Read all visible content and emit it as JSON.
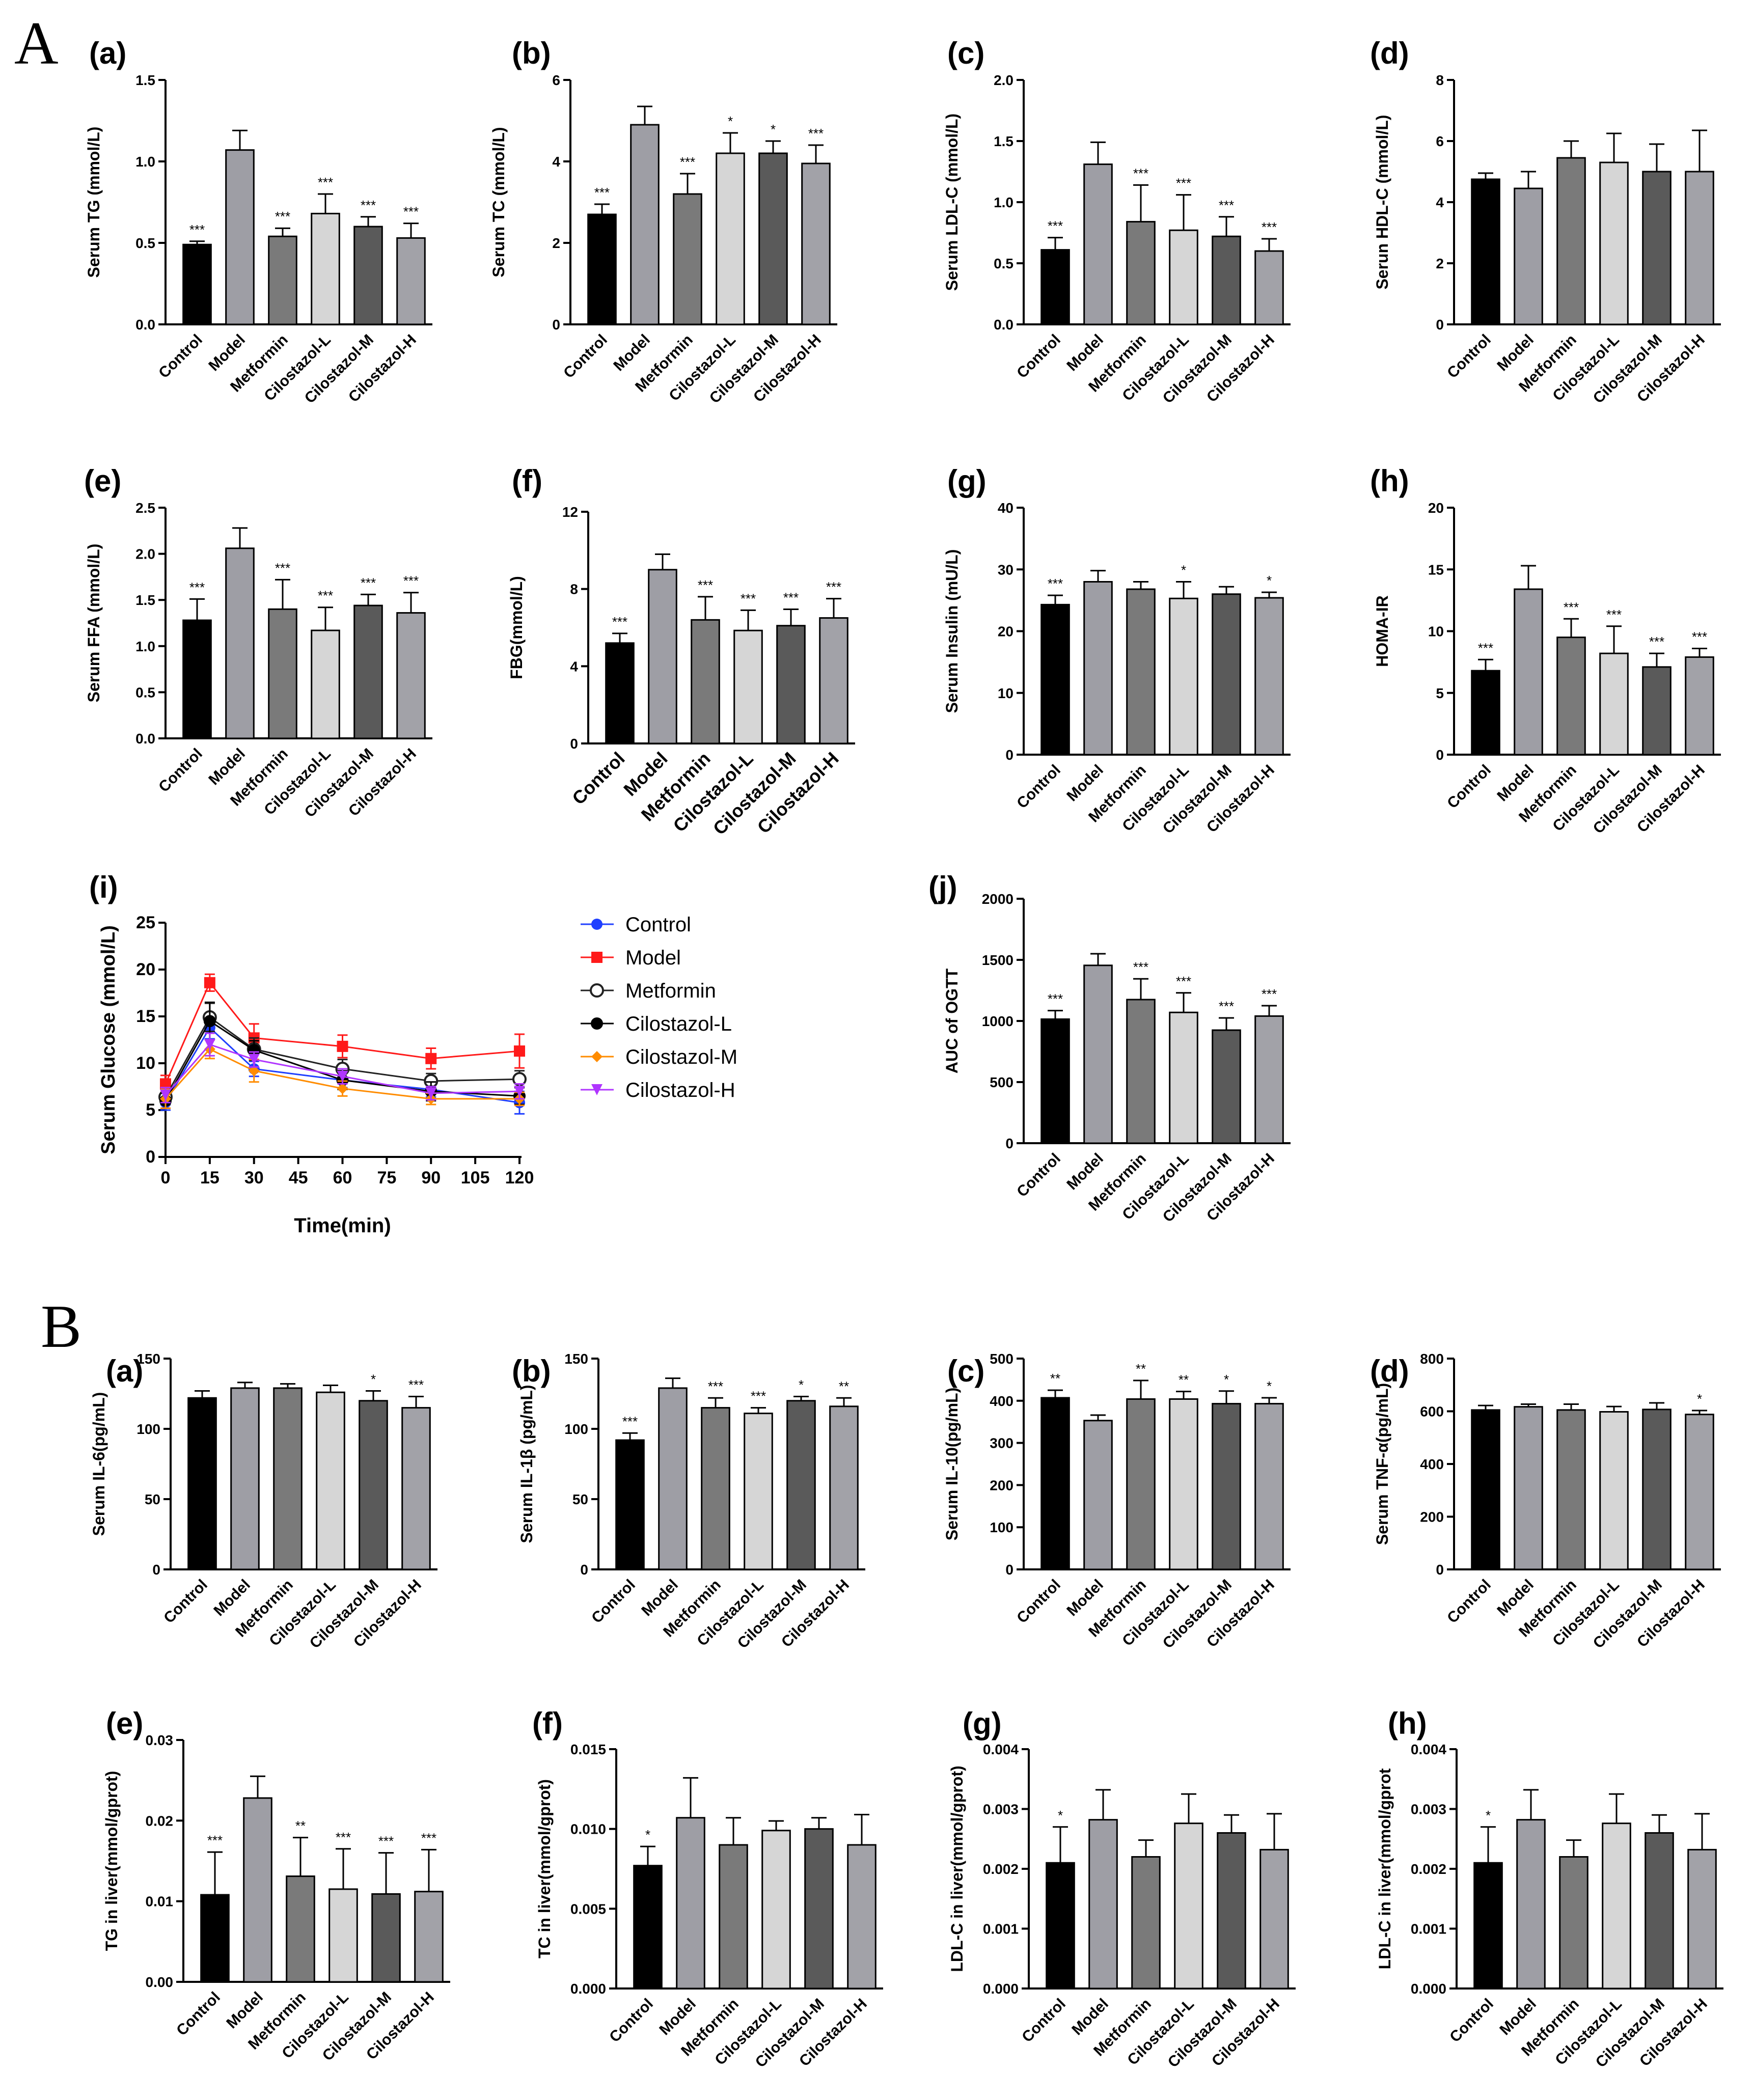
{
  "section_labels": [
    "A",
    "B"
  ],
  "colors": {
    "bars": [
      "#000000",
      "#9e9ea5",
      "#7a7a7a",
      "#d6d6d6",
      "#5a5a5a",
      "#a2a2a8"
    ],
    "lines": {
      "Control": "#1f3fff",
      "Model": "#ff1a1a",
      "Metformin": "#222222",
      "Cilostazol-L": "#000000",
      "Cilostazol-M": "#ff8c00",
      "Cilostazol-H": "#b035ff"
    }
  },
  "chart_data": [
    {
      "id": "A-a",
      "label": "(a)",
      "type": "bar",
      "ylabel": "Serum TG (mmol/L)",
      "ylim": [
        0,
        1.5
      ],
      "ticks": [
        "0.0",
        "0.5",
        "1.0",
        "1.5"
      ],
      "categories": [
        "Control",
        "Model",
        "Metformin",
        "Cilostazol-L",
        "Cilostazol-M",
        "Cilostazol-H"
      ],
      "values": [
        0.49,
        1.07,
        0.54,
        0.68,
        0.6,
        0.53
      ],
      "errors": [
        0.02,
        0.12,
        0.05,
        0.12,
        0.06,
        0.09
      ],
      "stars": [
        "***",
        "",
        "***",
        "***",
        "***",
        "***"
      ]
    },
    {
      "id": "A-b",
      "label": "(b)",
      "type": "bar",
      "ylabel": "Serum TC (mmol/L)",
      "ylim": [
        0,
        6
      ],
      "ticks": [
        "0",
        "2",
        "4",
        "6"
      ],
      "categories": [
        "Control",
        "Model",
        "Metformin",
        "Cilostazol-L",
        "Cilostazol-M",
        "Cilostazol-H"
      ],
      "values": [
        2.7,
        4.9,
        3.2,
        4.2,
        4.2,
        3.95
      ],
      "errors": [
        0.25,
        0.45,
        0.5,
        0.5,
        0.3,
        0.45
      ],
      "stars": [
        "***",
        "",
        "***",
        "*",
        "*",
        "***"
      ]
    },
    {
      "id": "A-c",
      "label": "(c)",
      "type": "bar",
      "ylabel": "Serum LDL-C (mmol/L)",
      "ylim": [
        0,
        2
      ],
      "ticks": [
        "0.0",
        "0.5",
        "1.0",
        "1.5",
        "2.0"
      ],
      "categories": [
        "Control",
        "Model",
        "Metformin",
        "Cilostazol-L",
        "Cilostazol-M",
        "Cilostazol-H"
      ],
      "values": [
        0.61,
        1.31,
        0.84,
        0.77,
        0.72,
        0.6
      ],
      "errors": [
        0.1,
        0.18,
        0.3,
        0.29,
        0.16,
        0.1
      ],
      "stars": [
        "***",
        "",
        "***",
        "***",
        "***",
        "***"
      ]
    },
    {
      "id": "A-d",
      "label": "(d)",
      "type": "bar",
      "ylabel": "Serun HDL-C (mmol/L)",
      "ylim": [
        0,
        8
      ],
      "ticks": [
        "0",
        "2",
        "4",
        "6",
        "8"
      ],
      "categories": [
        "Control",
        "Model",
        "Metformin",
        "Cilostazol-L",
        "Cilostazol-M",
        "Cilostazol-H"
      ],
      "values": [
        4.75,
        4.45,
        5.45,
        5.3,
        5.0,
        5.0
      ],
      "errors": [
        0.2,
        0.55,
        0.55,
        0.95,
        0.9,
        1.35
      ],
      "stars": [
        "",
        "",
        "",
        "",
        "",
        ""
      ]
    },
    {
      "id": "A-e",
      "label": "(e)",
      "type": "bar",
      "ylabel": "Serum FFA (mmol/L)",
      "ylim": [
        0,
        2.5
      ],
      "ticks": [
        "0.0",
        "0.5",
        "1.0",
        "1.5",
        "2.0",
        "2.5"
      ],
      "categories": [
        "Control",
        "Model",
        "Metformin",
        "Cilostazol-L",
        "Cilostazol-M",
        "Cilostazol-H"
      ],
      "values": [
        1.28,
        2.06,
        1.4,
        1.17,
        1.44,
        1.36
      ],
      "errors": [
        0.23,
        0.22,
        0.32,
        0.25,
        0.12,
        0.22
      ],
      "stars": [
        "***",
        "",
        "***",
        "***",
        "***",
        "***"
      ]
    },
    {
      "id": "A-f",
      "label": "(f)",
      "type": "bar",
      "ylabel": "FBG(mmol/L)",
      "ylim": [
        0,
        12
      ],
      "ticks": [
        "0",
        "4",
        "8",
        "12"
      ],
      "categories": [
        "Control",
        "Model",
        "Metformin",
        "Cilostazol-L",
        "Cilostazol-M",
        "Cilostazol-H"
      ],
      "values": [
        5.2,
        9.0,
        6.4,
        5.85,
        6.1,
        6.5
      ],
      "errors": [
        0.5,
        0.8,
        1.2,
        1.05,
        0.85,
        1.0
      ],
      "stars": [
        "***",
        "",
        "***",
        "***",
        "***",
        "***"
      ],
      "large": true
    },
    {
      "id": "A-g",
      "label": "(g)",
      "type": "bar",
      "ylabel": "Serum Insulin (mU/L)",
      "ylim": [
        0,
        40
      ],
      "ticks": [
        "0",
        "10",
        "20",
        "30",
        "40"
      ],
      "categories": [
        "Control",
        "Model",
        "Metformin",
        "Cilostazol-L",
        "Cilostazol-M",
        "Cilostazol-H"
      ],
      "values": [
        24.3,
        28.0,
        26.8,
        25.3,
        26.0,
        25.4
      ],
      "errors": [
        1.5,
        1.8,
        1.2,
        2.7,
        1.2,
        0.9
      ],
      "stars": [
        "***",
        "",
        "",
        "*",
        "",
        "*"
      ]
    },
    {
      "id": "A-h",
      "label": "(h)",
      "type": "bar",
      "ylabel": "HOMA-IR",
      "ylim": [
        0,
        20
      ],
      "ticks": [
        "0",
        "5",
        "10",
        "15",
        "20"
      ],
      "categories": [
        "Control",
        "Model",
        "Metformin",
        "Cilostazol-L",
        "Cilostazol-M",
        "Cilostazol-H"
      ],
      "values": [
        6.8,
        13.4,
        9.5,
        8.2,
        7.1,
        7.9
      ],
      "errors": [
        0.9,
        1.9,
        1.5,
        2.2,
        1.1,
        0.7
      ],
      "stars": [
        "***",
        "",
        "***",
        "***",
        "***",
        "***"
      ]
    },
    {
      "id": "A-i",
      "label": "(i)",
      "type": "line",
      "ylabel": "Serum Glucose (mmol/L)",
      "xlabel": "Time(min)",
      "ylim": [
        0,
        25
      ],
      "yticks": [
        "0",
        "5",
        "10",
        "15",
        "20",
        "25"
      ],
      "xlim": [
        0,
        120
      ],
      "xticks": [
        "0",
        "15",
        "30",
        "45",
        "60",
        "75",
        "90",
        "105",
        "120"
      ],
      "x": [
        0,
        15,
        30,
        60,
        90,
        120
      ],
      "series": [
        {
          "name": "Control",
          "values": [
            5.8,
            13.8,
            9.4,
            8.2,
            7.2,
            5.8
          ],
          "errors": [
            0.8,
            1.2,
            0.8,
            0.8,
            0.8,
            1.2
          ]
        },
        {
          "name": "Model",
          "values": [
            7.8,
            18.6,
            12.7,
            11.8,
            10.5,
            11.3
          ],
          "errors": [
            0.9,
            0.9,
            1.5,
            1.2,
            1.1,
            1.8
          ]
        },
        {
          "name": "Metformin",
          "values": [
            6.4,
            14.9,
            11.5,
            9.4,
            8.1,
            8.3
          ],
          "errors": [
            0.8,
            1.5,
            1.2,
            1.0,
            0.8,
            0.9
          ]
        },
        {
          "name": "Cilostazol-L",
          "values": [
            6.0,
            14.5,
            11.4,
            8.2,
            7.0,
            6.5
          ],
          "errors": [
            0.8,
            2.0,
            1.0,
            1.0,
            1.0,
            0.9
          ]
        },
        {
          "name": "Cilostazol-M",
          "values": [
            6.2,
            11.5,
            9.2,
            7.3,
            6.2,
            6.2
          ],
          "errors": [
            1.0,
            1.0,
            1.2,
            0.8,
            0.6,
            0.7
          ]
        },
        {
          "name": "Cilostazol-H",
          "values": [
            6.6,
            12.0,
            10.4,
            8.6,
            6.8,
            7.0
          ],
          "errors": [
            0.8,
            1.2,
            0.8,
            0.8,
            0.7,
            0.8
          ]
        }
      ]
    },
    {
      "id": "A-j",
      "label": "(j)",
      "type": "bar",
      "ylabel": "AUC of OGTT",
      "ylim": [
        0,
        2000
      ],
      "ticks": [
        "0",
        "500",
        "1000",
        "1500",
        "2000"
      ],
      "categories": [
        "Control",
        "Model",
        "Metformin",
        "Cilostazol-L",
        "Cilostazol-M",
        "Cilostazol-H"
      ],
      "values": [
        1015,
        1455,
        1175,
        1070,
        925,
        1040
      ],
      "errors": [
        70,
        95,
        170,
        160,
        100,
        85
      ],
      "stars": [
        "***",
        "",
        "***",
        "***",
        "***",
        "***"
      ]
    },
    {
      "id": "B-a",
      "label": "(a)",
      "type": "bar",
      "ylabel": "Serum IL-6(pg/mL)",
      "ylim": [
        0,
        150
      ],
      "ticks": [
        "0",
        "50",
        "100",
        "150"
      ],
      "categories": [
        "Control",
        "Model",
        "Metformin",
        "Cilostazol-L",
        "Cilostazol-M",
        "Cilostazol-H"
      ],
      "values": [
        122,
        129,
        129,
        126,
        120,
        115
      ],
      "errors": [
        5,
        4,
        3,
        5,
        7,
        8
      ],
      "stars": [
        "",
        "",
        "",
        "",
        "*",
        "***"
      ]
    },
    {
      "id": "B-b",
      "label": "(b)",
      "type": "bar",
      "ylabel": "Serum IL-1β (pg/mL)",
      "ylim": [
        0,
        150
      ],
      "ticks": [
        "0",
        "50",
        "100",
        "150"
      ],
      "categories": [
        "Control",
        "Model",
        "Metformin",
        "Cilostazol-L",
        "Cilostazol-M",
        "Cilostazol-H"
      ],
      "values": [
        92,
        129,
        115,
        111,
        120,
        116
      ],
      "errors": [
        5,
        7,
        7,
        4,
        3,
        6
      ],
      "stars": [
        "***",
        "",
        "***",
        "***",
        "*",
        "**"
      ]
    },
    {
      "id": "B-c",
      "label": "(c)",
      "type": "bar",
      "ylabel": "Serum IL-10(pg/mL)",
      "ylim": [
        0,
        500
      ],
      "ticks": [
        "0",
        "100",
        "200",
        "300",
        "400",
        "500"
      ],
      "categories": [
        "Control",
        "Model",
        "Metformin",
        "Cilostazol-L",
        "Cilostazol-M",
        "Cilostazol-H"
      ],
      "values": [
        407,
        353,
        404,
        404,
        393,
        393
      ],
      "errors": [
        18,
        13,
        44,
        18,
        30,
        14
      ],
      "stars": [
        "**",
        "",
        "**",
        "**",
        "*",
        "*"
      ]
    },
    {
      "id": "B-d",
      "label": "(d)",
      "type": "bar",
      "ylabel": "Serum TNF-α(pg/mL)",
      "ylim": [
        0,
        800
      ],
      "ticks": [
        "0",
        "200",
        "400",
        "600",
        "800"
      ],
      "categories": [
        "Control",
        "Model",
        "Metformin",
        "Cilostazol-L",
        "Cilostazol-M",
        "Cilostazol-H"
      ],
      "values": [
        605,
        617,
        605,
        598,
        607,
        588
      ],
      "errors": [
        17,
        10,
        22,
        20,
        25,
        15
      ],
      "stars": [
        "",
        "",
        "",
        "",
        "",
        "*"
      ]
    },
    {
      "id": "B-e",
      "label": "(e)",
      "type": "bar",
      "ylabel": "TG in liver(mmol/gprot)",
      "ylim": [
        0,
        0.03
      ],
      "ticks": [
        "0.00",
        "0.01",
        "0.02",
        "0.03"
      ],
      "categories": [
        "Control",
        "Model",
        "Metformin",
        "Cilostazol-L",
        "Cilostazol-M",
        "Cilostazol-H"
      ],
      "values": [
        0.0108,
        0.0228,
        0.0131,
        0.0115,
        0.0109,
        0.0112
      ],
      "errors": [
        0.0053,
        0.0027,
        0.0048,
        0.005,
        0.0051,
        0.0052
      ],
      "stars": [
        "***",
        "",
        "**",
        "***",
        "***",
        "***"
      ]
    },
    {
      "id": "B-f",
      "label": "(f)",
      "type": "bar",
      "ylabel": "TC in liver(mmol/gprot)",
      "ylim": [
        0,
        0.015
      ],
      "ticks": [
        "0.000",
        "0.005",
        "0.010",
        "0.015"
      ],
      "categories": [
        "Control",
        "Model",
        "Metformin",
        "Cilostazol-L",
        "Cilostazol-M",
        "Cilostazol-H"
      ],
      "values": [
        0.0077,
        0.0107,
        0.009,
        0.0099,
        0.01,
        0.009
      ],
      "errors": [
        0.0012,
        0.0025,
        0.0017,
        0.0006,
        0.0007,
        0.0019
      ],
      "stars": [
        "*",
        "",
        "",
        "",
        "",
        ""
      ]
    },
    {
      "id": "B-g",
      "label": "(g)",
      "type": "bar",
      "ylabel": "LDL-C in liver(mmol/gprot)",
      "ylim": [
        0,
        0.004
      ],
      "ticks": [
        "0.000",
        "0.001",
        "0.002",
        "0.003",
        "0.004"
      ],
      "categories": [
        "Control",
        "Model",
        "Metformin",
        "Cilostazol-L",
        "Cilostazol-M",
        "Cilostazol-H"
      ],
      "values": [
        0.0021,
        0.00282,
        0.0022,
        0.00276,
        0.0026,
        0.00232
      ],
      "errors": [
        0.0006,
        0.0005,
        0.00028,
        0.00049,
        0.0003,
        0.0006
      ],
      "stars": [
        "*",
        "",
        "",
        "",
        "",
        ""
      ]
    },
    {
      "id": "B-h",
      "label": "(h)",
      "type": "bar",
      "ylabel": "LDL-C in liver(mmol/gprot",
      "ylim": [
        0,
        0.004
      ],
      "ticks": [
        "0.000",
        "0.001",
        "0.002",
        "0.003",
        "0.004"
      ],
      "categories": [
        "Control",
        "Model",
        "Metformin",
        "Cilostazol-L",
        "Cilostazol-M",
        "Cilostazol-H"
      ],
      "values": [
        0.0021,
        0.00282,
        0.0022,
        0.00276,
        0.0026,
        0.00232
      ],
      "errors": [
        0.0006,
        0.0005,
        0.00028,
        0.00049,
        0.0003,
        0.0006
      ],
      "stars": [
        "*",
        "",
        "",
        "",
        "",
        ""
      ]
    }
  ]
}
